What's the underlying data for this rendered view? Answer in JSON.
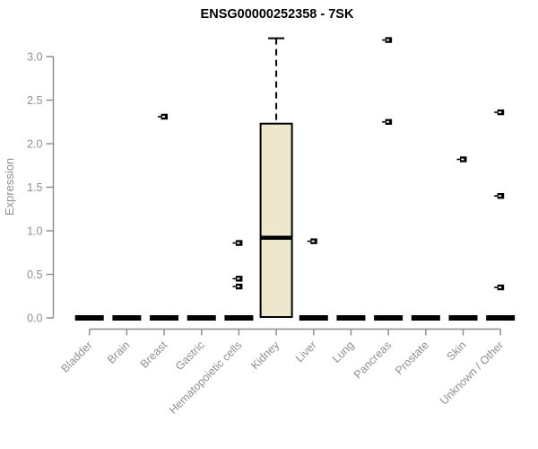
{
  "window": {
    "title": "ENSG00000252358 - 7SK"
  },
  "chart_data": {
    "type": "boxplot",
    "title": "ENSG00000252358 - 7SK",
    "xlabel": "",
    "ylabel": "Expression",
    "ylim": [
      0,
      3.25
    ],
    "yticks": [
      0.0,
      0.5,
      1.0,
      1.5,
      2.0,
      2.5,
      3.0
    ],
    "grid": false,
    "legend": "none",
    "categories": [
      "Bladder",
      "Brain",
      "Breast",
      "Gastric",
      "Hematopoietic cells",
      "Kidney",
      "Liver",
      "Lung",
      "Pancreas",
      "Prostate",
      "Skin",
      "Unknown / Other"
    ],
    "boxes": [
      {
        "category": "Bladder",
        "shape": "flat",
        "value": 0
      },
      {
        "category": "Brain",
        "shape": "flat",
        "value": 0
      },
      {
        "category": "Breast",
        "shape": "flat",
        "value": 0
      },
      {
        "category": "Gastric",
        "shape": "flat",
        "value": 0
      },
      {
        "category": "Hematopoietic cells",
        "shape": "flat",
        "value": 0
      },
      {
        "category": "Kidney",
        "shape": "box",
        "q1": 0.01,
        "median": 0.92,
        "q3": 2.23,
        "whisker_high": 3.21,
        "whisker_low": 0.01
      },
      {
        "category": "Liver",
        "shape": "flat",
        "value": 0
      },
      {
        "category": "Lung",
        "shape": "flat",
        "value": 0
      },
      {
        "category": "Pancreas",
        "shape": "flat",
        "value": 0
      },
      {
        "category": "Prostate",
        "shape": "flat",
        "value": 0
      },
      {
        "category": "Skin",
        "shape": "flat",
        "value": 0
      },
      {
        "category": "Unknown / Other",
        "shape": "flat",
        "value": 0
      }
    ],
    "outliers": [
      {
        "category": "Breast",
        "value": 2.31
      },
      {
        "category": "Hematopoietic cells",
        "value": 0.86
      },
      {
        "category": "Hematopoietic cells",
        "value": 0.45
      },
      {
        "category": "Hematopoietic cells",
        "value": 0.36
      },
      {
        "category": "Liver",
        "value": 0.88
      },
      {
        "category": "Pancreas",
        "value": 3.19
      },
      {
        "category": "Pancreas",
        "value": 2.25
      },
      {
        "category": "Skin",
        "value": 1.82
      },
      {
        "category": "Unknown / Other",
        "value": 2.36
      },
      {
        "category": "Unknown / Other",
        "value": 1.4
      },
      {
        "category": "Unknown / Other",
        "value": 0.35
      }
    ],
    "colors": {
      "box_fill": "#ECE7CD",
      "box_border": "#000000",
      "median": "#000000",
      "flat_dash": "#000000",
      "outlier": "#000000",
      "axis_line": "#8a8a8a",
      "tick_label": "#8f8f8f",
      "title": "#000000",
      "background": "#ffffff"
    }
  }
}
